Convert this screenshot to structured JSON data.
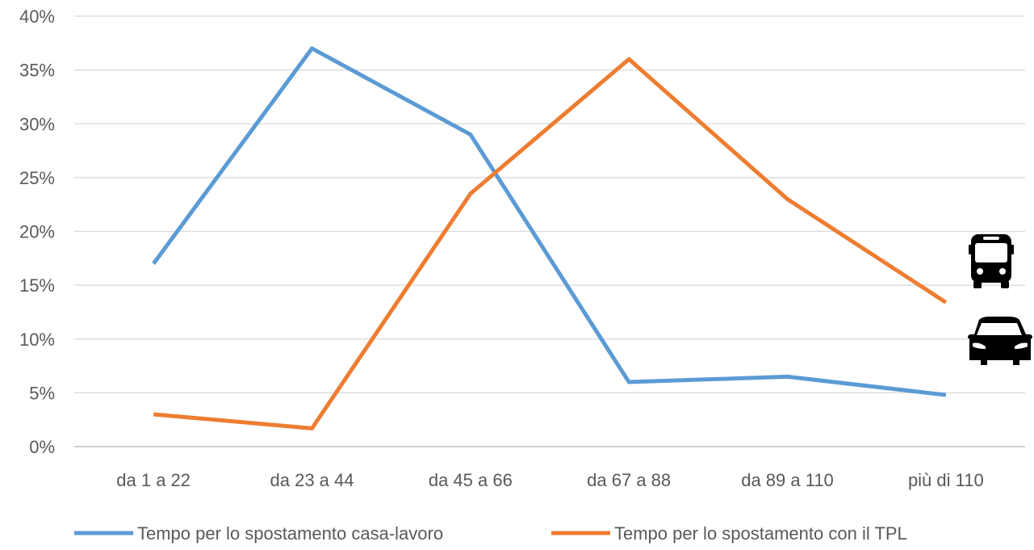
{
  "chart_data": {
    "type": "line",
    "title": "",
    "xlabel": "",
    "ylabel": "",
    "categories": [
      "da 1 a 22",
      "da 23 a 44",
      "da 45 a 66",
      "da 67 a 88",
      "da 89 a 110",
      "più di 110"
    ],
    "ylim": [
      0,
      40
    ],
    "yticks": [
      0,
      5,
      10,
      15,
      20,
      25,
      30,
      35,
      40
    ],
    "ytick_labels": [
      "0%",
      "5%",
      "10%",
      "15%",
      "20%",
      "25%",
      "30%",
      "35%",
      "40%"
    ],
    "grid": true,
    "legend_position": "bottom",
    "series": [
      {
        "name": "Tempo per lo spostamento casa-lavoro",
        "color": "#5B9BD5",
        "values": [
          17,
          37,
          29,
          6,
          6.5,
          4.8
        ],
        "end_icon": "car-icon"
      },
      {
        "name": "Tempo per lo spostamento con il TPL",
        "color": "#ED7D31",
        "values": [
          3,
          1.7,
          23.5,
          36,
          23,
          13.4
        ],
        "end_icon": "bus-icon"
      }
    ]
  }
}
